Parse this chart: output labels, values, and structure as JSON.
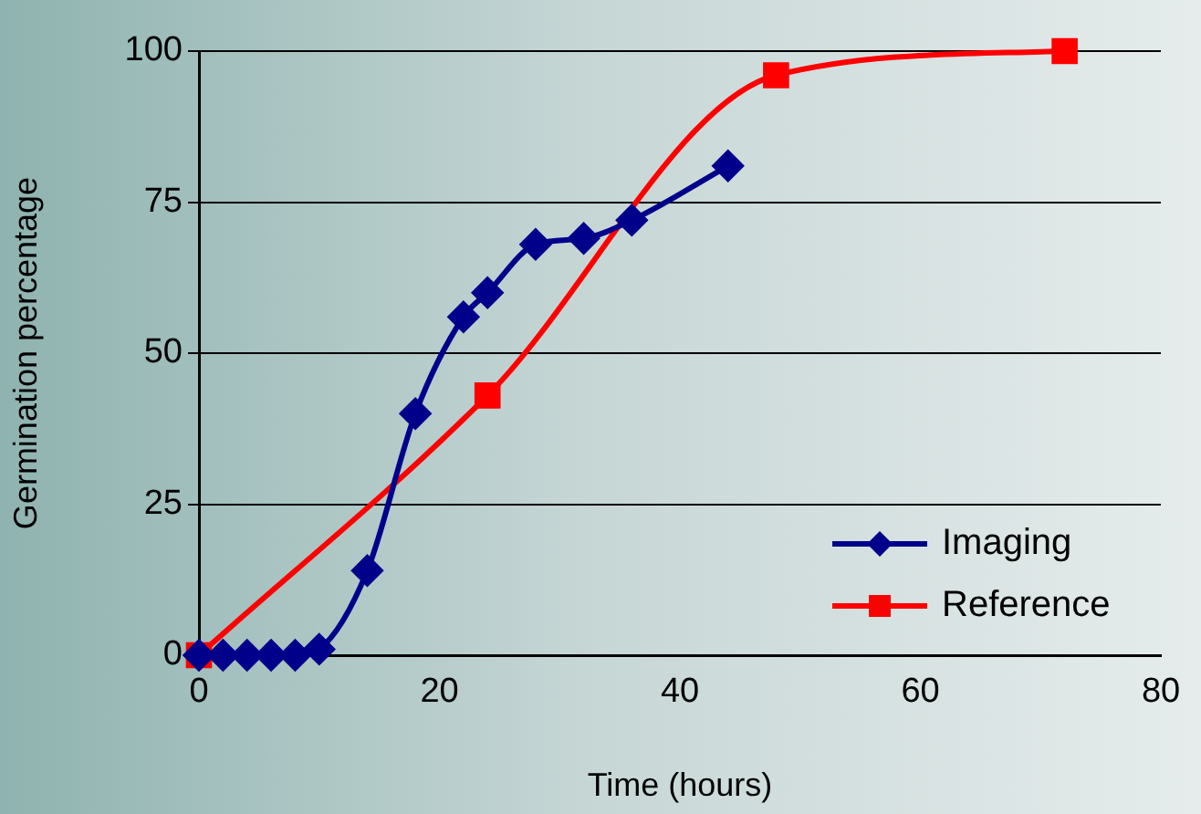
{
  "chart_data": {
    "type": "line",
    "xlabel": "Time (hours)",
    "ylabel": "Germination percentage",
    "xlim": [
      0,
      80
    ],
    "xticks": [
      0,
      20,
      40,
      60,
      80
    ],
    "ylim": [
      0,
      100
    ],
    "yticks": [
      0,
      25,
      50,
      75,
      100
    ],
    "grid": "y",
    "legend": "bottom right",
    "series": [
      {
        "name": "Imaging",
        "color": "#00008b",
        "marker": "diamond",
        "x": [
          0,
          2,
          4,
          6,
          8,
          10,
          14,
          18,
          22,
          24,
          28,
          32,
          36,
          44
        ],
        "values": [
          0,
          0,
          0,
          0,
          0,
          1,
          14,
          40,
          56,
          60,
          68,
          69,
          72,
          81
        ]
      },
      {
        "name": "Reference",
        "color": "#ff0000",
        "marker": "square",
        "x": [
          0,
          24,
          48,
          72
        ],
        "values": [
          0,
          43,
          96,
          100
        ]
      }
    ]
  }
}
